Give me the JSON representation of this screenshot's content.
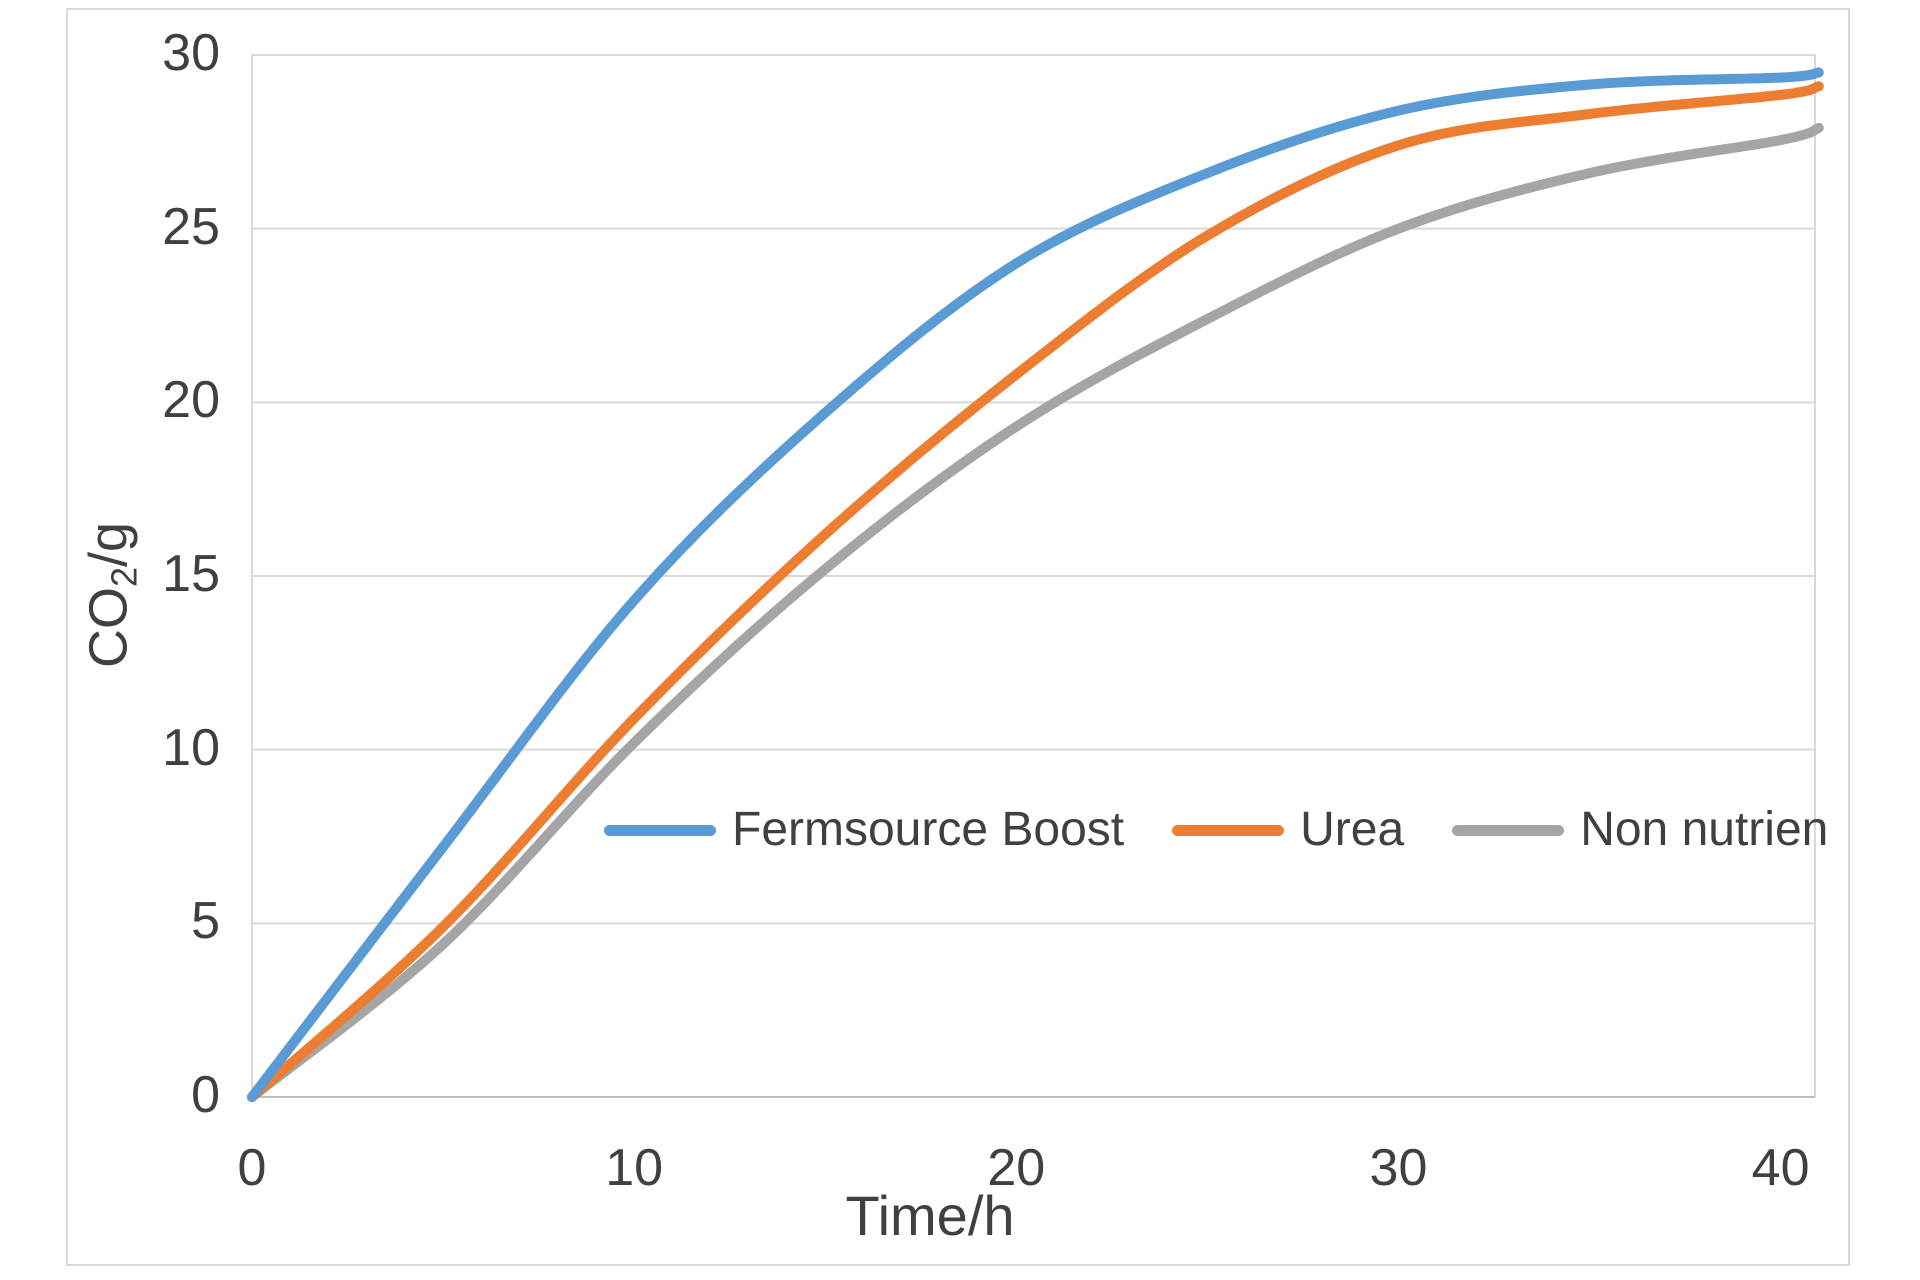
{
  "chart": {
    "xlabel": "Time/h",
    "ylabel_main": "CO",
    "ylabel_sub": "2",
    "ylabel_suffix": "/g"
  },
  "chart_data": {
    "type": "line",
    "title": "",
    "xlabel": "Time/h",
    "ylabel": "CO2/g",
    "xlim": [
      0,
      40.9
    ],
    "ylim": [
      0,
      30
    ],
    "x_ticks": [
      0,
      10,
      20,
      30,
      40
    ],
    "y_ticks": [
      0,
      5,
      10,
      15,
      20,
      25,
      30
    ],
    "grid": "horizontal-major-on",
    "legend_position": "inside-plot-center",
    "x": [
      0,
      5,
      10,
      15,
      20,
      25,
      30,
      35,
      40,
      41
    ],
    "series": [
      {
        "name": "Fermsource Boost",
        "color": "#5B9BD5",
        "values": [
          0,
          7.2,
          14.3,
          19.7,
          24.0,
          26.6,
          28.4,
          29.15,
          29.35,
          29.5
        ]
      },
      {
        "name": "Urea",
        "color": "#ED7D31",
        "values": [
          0,
          4.9,
          10.9,
          16.2,
          20.8,
          24.8,
          27.4,
          28.3,
          28.85,
          29.1
        ]
      },
      {
        "name": "Non nutrien",
        "color": "#A5A5A5",
        "values": [
          0,
          4.4,
          10.2,
          15.2,
          19.3,
          22.4,
          25.0,
          26.6,
          27.55,
          27.9
        ]
      }
    ],
    "colors": {
      "grid": "#D9D9D9",
      "plot_border": "#D9D9D9",
      "axis_line": "#BFBFBF",
      "tick_text": "#404040",
      "chart_border": "#D9D9D9"
    }
  }
}
